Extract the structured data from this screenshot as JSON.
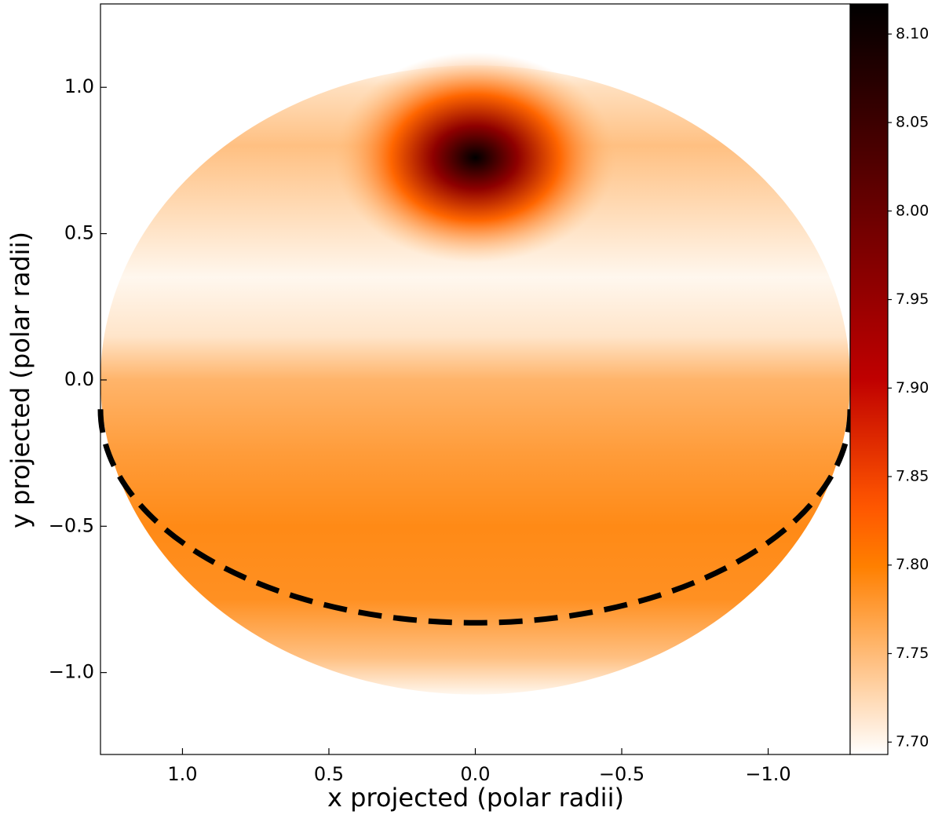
{
  "chart_data": {
    "type": "heatmap",
    "colormap": "gist_heat_r",
    "xlabel": "x projected (polar radii)",
    "ylabel": "y projected (polar radii)",
    "xlim": [
      1.28,
      -1.28
    ],
    "ylim": [
      -1.28,
      1.285
    ],
    "xticks": [
      {
        "value": 1,
        "label": "1.0"
      },
      {
        "value": 0.5,
        "label": "0.5"
      },
      {
        "value": 0,
        "label": "0.0"
      },
      {
        "value": -0.5,
        "label": "−0.5"
      },
      {
        "value": -1,
        "label": "−1.0"
      }
    ],
    "yticks": [
      {
        "value": -1,
        "label": "−1.0"
      },
      {
        "value": -0.5,
        "label": "−0.5"
      },
      {
        "value": 0,
        "label": "0.0"
      },
      {
        "value": 0.5,
        "label": "0.5"
      },
      {
        "value": 1,
        "label": "1.0"
      }
    ],
    "clim": [
      7.693,
      8.117
    ],
    "cticks": [
      {
        "value": 7.7,
        "label": "7.70"
      },
      {
        "value": 7.75,
        "label": "7.75"
      },
      {
        "value": 7.8,
        "label": "7.80"
      },
      {
        "value": 7.85,
        "label": "7.85"
      },
      {
        "value": 7.9,
        "label": "7.90"
      },
      {
        "value": 7.95,
        "label": "7.95"
      },
      {
        "value": 8.0,
        "label": "8.00"
      },
      {
        "value": 8.05,
        "label": "8.05"
      },
      {
        "value": 8.1,
        "label": "8.10"
      }
    ],
    "disk": {
      "rx": 1.28,
      "ry": 1.075
    },
    "profile": {
      "y": [
        -1.075,
        -0.95,
        -0.75,
        -0.5,
        -0.25,
        0.0,
        0.15,
        0.35,
        0.55,
        0.8,
        1.0,
        1.075
      ],
      "values": [
        7.7,
        7.745,
        7.785,
        7.79,
        7.775,
        7.755,
        7.715,
        7.7,
        7.72,
        7.745,
        7.72,
        7.7
      ]
    },
    "spot": {
      "x": 0,
      "y": 0.76,
      "rx": 0.48,
      "ry": 0.36,
      "r": [
        0,
        0.3,
        0.6,
        1
      ],
      "values": [
        8.117,
        7.96,
        7.82,
        7.75
      ]
    },
    "equator": {
      "cy": -0.1,
      "rx": 1.28,
      "ry": 0.73,
      "color": "#000000"
    }
  }
}
